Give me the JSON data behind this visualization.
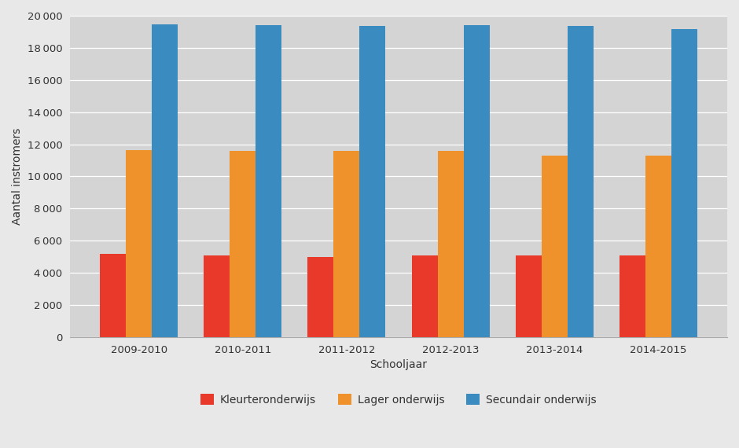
{
  "categories": [
    "2009-2010",
    "2010-2011",
    "2011-2012",
    "2012-2013",
    "2013-2014",
    "2014-2015"
  ],
  "series": [
    {
      "label": "Kleurteronderwijs",
      "color": "#e8392a",
      "values": [
        5200,
        5100,
        5000,
        5100,
        5100,
        5100
      ]
    },
    {
      "label": "Lager onderwijs",
      "color": "#f0922b",
      "values": [
        11650,
        11600,
        11600,
        11600,
        11300,
        11300
      ]
    },
    {
      "label": "Secundair onderwijs",
      "color": "#3a8bbf",
      "values": [
        19450,
        19400,
        19350,
        19400,
        19350,
        19150
      ]
    }
  ],
  "xlabel": "Schooljaar",
  "ylabel": "Aantal instromers",
  "ylim": [
    0,
    20000
  ],
  "yticks": [
    0,
    2000,
    4000,
    6000,
    8000,
    10000,
    12000,
    14000,
    16000,
    18000,
    20000
  ],
  "plot_bg_color": "#d4d4d4",
  "figure_bg_color": "#e8e8e8",
  "grid_color": "#ffffff",
  "bar_width": 0.25,
  "label_fontsize": 10,
  "tick_fontsize": 9.5,
  "legend_fontsize": 10
}
